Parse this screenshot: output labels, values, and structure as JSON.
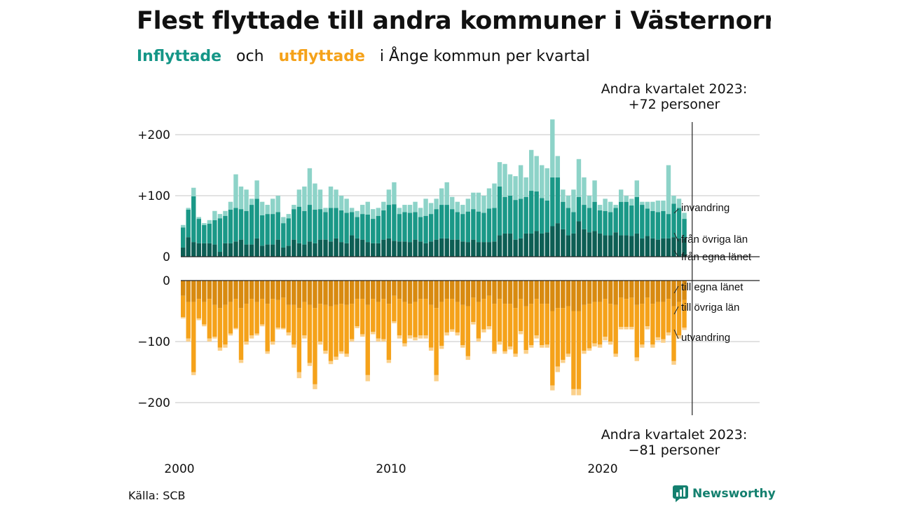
{
  "title": "Flest flyttade till andra kommuner i Västernorrland",
  "subtitle": {
    "part1": "Inflyttade",
    "part2": "och",
    "part3": "utflyttade",
    "part4": "i Ånge  kommun  per  kvartal"
  },
  "colors": {
    "in_dark": "#0d5e54",
    "in_mid": "#1a9887",
    "in_light": "#8dd3c8",
    "out_dark": "#d88a10",
    "out_mid": "#f5a21a",
    "out_light": "#fbd08a",
    "grid": "#d9d9d9"
  },
  "source": "Källa: SCB",
  "brand": "Newsworthy",
  "chart_data": {
    "type": "bar",
    "stacked": true,
    "diverging": true,
    "x_start": "2000 Q1",
    "x_end": "2023 Q2",
    "x_ticks": [
      "2000",
      "2010",
      "2020"
    ],
    "y_ticks": [
      "+200",
      "+100",
      "0",
      "0",
      "−100",
      "−200"
    ],
    "grid": true,
    "annotation_top": {
      "line1": "Andra kvartalet 2023:",
      "line2": "+72 personer"
    },
    "annotation_bottom": {
      "line1": "Andra kvartalet 2023:",
      "line2": "−81 personer"
    },
    "series_labels_in": [
      "invandring",
      "från övriga län",
      "från egna länet"
    ],
    "series_labels_out": [
      "till egna länet",
      "till övriga län",
      "utvandring"
    ],
    "inflyttade_total": [
      52,
      80,
      113,
      65,
      55,
      60,
      75,
      70,
      75,
      90,
      135,
      115,
      110,
      95,
      125,
      90,
      85,
      95,
      100,
      65,
      70,
      85,
      110,
      115,
      145,
      120,
      110,
      80,
      115,
      110,
      100,
      95,
      80,
      75,
      85,
      90,
      78,
      80,
      90,
      110,
      122,
      80,
      85,
      85,
      90,
      80,
      95,
      88,
      95,
      112,
      122,
      98,
      90,
      85,
      95,
      105,
      105,
      100,
      112,
      120,
      155,
      152,
      135,
      132,
      150,
      130,
      175,
      165,
      150,
      145,
      225,
      165,
      110,
      100,
      110,
      160,
      130,
      100,
      125,
      85,
      95,
      90,
      85,
      110,
      100,
      95,
      125,
      90,
      90,
      90,
      92,
      92,
      150,
      100,
      95,
      72
    ],
    "inflyttade_from_egna_lanet": [
      15,
      32,
      24,
      22,
      22,
      22,
      20,
      8,
      22,
      22,
      25,
      28,
      20,
      20,
      30,
      18,
      20,
      20,
      28,
      15,
      18,
      28,
      22,
      20,
      25,
      22,
      28,
      28,
      25,
      30,
      24,
      22,
      35,
      30,
      28,
      24,
      22,
      22,
      28,
      30,
      26,
      25,
      25,
      24,
      28,
      25,
      22,
      25,
      28,
      30,
      30,
      28,
      28,
      25,
      24,
      28,
      24,
      24,
      24,
      25,
      35,
      38,
      38,
      28,
      30,
      38,
      38,
      42,
      38,
      40,
      50,
      55,
      45,
      35,
      38,
      58,
      45,
      40,
      42,
      38,
      35,
      35,
      40,
      35,
      35,
      34,
      38,
      30,
      34,
      30,
      28,
      30,
      30,
      32,
      30,
      30
    ],
    "inflyttade_from_ovriga_lan": [
      33,
      45,
      75,
      40,
      30,
      32,
      40,
      55,
      45,
      55,
      55,
      50,
      55,
      65,
      65,
      50,
      50,
      50,
      45,
      40,
      45,
      50,
      60,
      55,
      60,
      55,
      50,
      45,
      55,
      50,
      52,
      50,
      38,
      35,
      42,
      45,
      40,
      45,
      48,
      55,
      60,
      45,
      48,
      48,
      45,
      40,
      45,
      45,
      50,
      55,
      55,
      50,
      45,
      45,
      50,
      50,
      50,
      48,
      55,
      55,
      80,
      60,
      62,
      65,
      65,
      60,
      70,
      65,
      58,
      52,
      80,
      75,
      45,
      45,
      35,
      40,
      40,
      40,
      48,
      38,
      40,
      38,
      40,
      55,
      55,
      50,
      60,
      55,
      45,
      45,
      45,
      45,
      40,
      55,
      50,
      32
    ],
    "utflyttade_total": [
      62,
      100,
      155,
      65,
      75,
      100,
      95,
      115,
      110,
      90,
      80,
      135,
      105,
      95,
      90,
      75,
      120,
      105,
      80,
      80,
      90,
      110,
      160,
      95,
      140,
      178,
      105,
      120,
      137,
      130,
      120,
      125,
      100,
      78,
      92,
      165,
      88,
      100,
      100,
      135,
      70,
      95,
      108,
      95,
      98,
      95,
      95,
      115,
      165,
      112,
      90,
      84,
      90,
      110,
      130,
      72,
      100,
      85,
      80,
      120,
      105,
      120,
      113,
      125,
      88,
      120,
      110,
      95,
      110,
      110,
      180,
      150,
      135,
      125,
      188,
      188,
      120,
      115,
      108,
      110,
      98,
      105,
      125,
      80,
      80,
      80,
      132,
      110,
      80,
      110,
      98,
      102,
      90,
      138,
      95,
      81
    ],
    "utflyttade_till_egna_lanet": [
      25,
      35,
      35,
      30,
      35,
      30,
      40,
      45,
      40,
      35,
      30,
      45,
      38,
      30,
      35,
      30,
      38,
      30,
      32,
      28,
      40,
      40,
      45,
      35,
      40,
      45,
      38,
      40,
      42,
      40,
      38,
      40,
      38,
      30,
      30,
      40,
      30,
      35,
      30,
      38,
      25,
      30,
      35,
      38,
      35,
      30,
      30,
      40,
      45,
      35,
      30,
      30,
      35,
      40,
      42,
      28,
      35,
      30,
      25,
      38,
      30,
      38,
      38,
      45,
      30,
      42,
      38,
      30,
      38,
      38,
      50,
      45,
      45,
      42,
      50,
      50,
      40,
      38,
      35,
      35,
      30,
      38,
      40,
      28,
      30,
      28,
      40,
      38,
      28,
      38,
      35,
      35,
      30,
      42,
      35,
      32
    ],
    "utflyttade_till_ovriga_lan": [
      35,
      60,
      115,
      32,
      37,
      65,
      52,
      65,
      65,
      52,
      48,
      85,
      62,
      60,
      52,
      42,
      78,
      70,
      45,
      50,
      45,
      65,
      105,
      55,
      95,
      125,
      62,
      75,
      90,
      85,
      78,
      80,
      58,
      45,
      58,
      115,
      54,
      60,
      66,
      92,
      42,
      60,
      68,
      52,
      58,
      60,
      60,
      70,
      110,
      72,
      55,
      50,
      50,
      66,
      82,
      40,
      60,
      50,
      50,
      78,
      70,
      78,
      70,
      75,
      53,
      72,
      68,
      60,
      68,
      67,
      122,
      96,
      85,
      78,
      128,
      128,
      75,
      73,
      68,
      70,
      62,
      62,
      80,
      48,
      46,
      48,
      86,
      67,
      47,
      67,
      58,
      61,
      55,
      90,
      55,
      45
    ]
  }
}
